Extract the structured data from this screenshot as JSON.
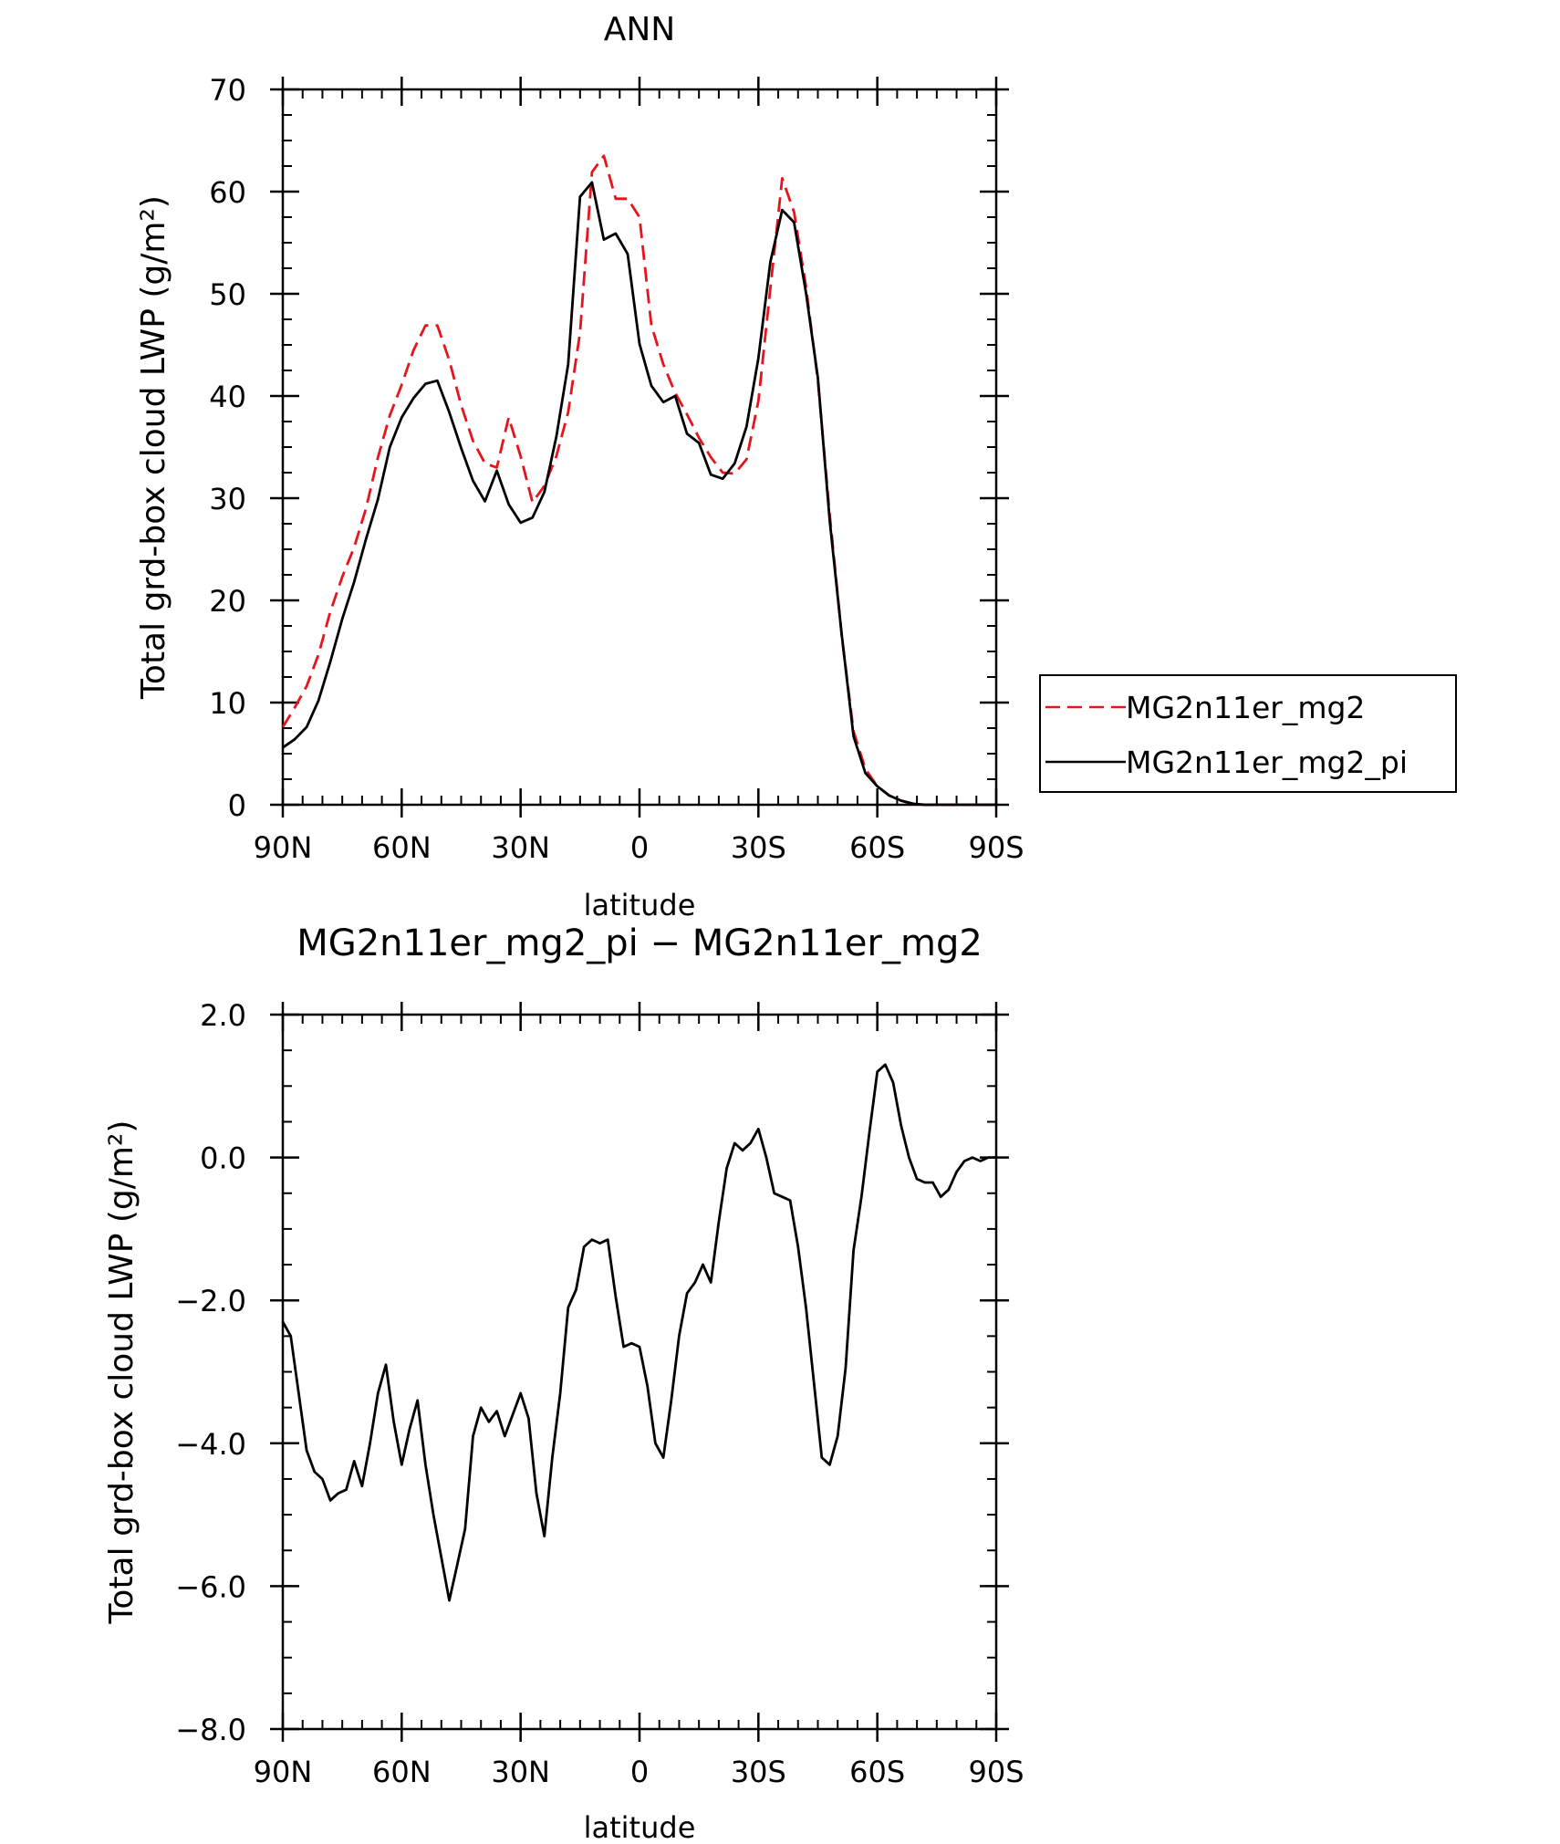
{
  "chart_data": [
    {
      "type": "line",
      "title": "ANN",
      "xlabel": "latitude",
      "ylabel": "Total grd-box cloud LWP (g/m²)",
      "xlim": [
        90,
        -90
      ],
      "ylim": [
        0,
        70
      ],
      "x_ticks": [
        90,
        60,
        30,
        0,
        -30,
        -60,
        -90
      ],
      "x_tick_labels": [
        "90N",
        "60N",
        "30N",
        "0",
        "30S",
        "60S",
        "90S"
      ],
      "y_ticks": [
        0,
        10,
        20,
        30,
        40,
        50,
        60,
        70
      ],
      "y_tick_labels": [
        "0",
        "10",
        "20",
        "30",
        "40",
        "50",
        "60",
        "70"
      ],
      "legend": "right-outside",
      "series": [
        {
          "name": "MG2n11er_mg2",
          "color": "#e8131b",
          "dash": "dashed",
          "x": [
            90,
            87,
            84,
            81,
            78,
            75,
            72,
            69,
            66,
            63,
            60,
            57,
            54,
            51,
            48,
            45,
            42,
            39,
            36,
            33,
            30,
            27,
            24,
            21,
            18,
            15,
            12,
            9,
            6,
            3,
            0,
            -3,
            -6,
            -9,
            -12,
            -15,
            -18,
            -21,
            -24,
            -27,
            -30,
            -33,
            -36,
            -39,
            -42,
            -45,
            -48,
            -51,
            -54,
            -57,
            -60,
            -63,
            -66,
            -69,
            -72,
            -75,
            -78,
            -81,
            -84,
            -87,
            -90
          ],
          "y": [
            7.6,
            9.5,
            11.6,
            14.7,
            18.9,
            22.3,
            25.2,
            29.0,
            34.0,
            38.1,
            41.1,
            44.5,
            46.9,
            46.9,
            43.5,
            39.1,
            35.6,
            33.4,
            33.0,
            37.9,
            34.1,
            29.6,
            31.2,
            34.1,
            38.4,
            46.2,
            61.9,
            63.5,
            59.3,
            59.3,
            57.5,
            46.9,
            43.1,
            40.3,
            38.2,
            35.9,
            34.0,
            32.5,
            32.4,
            33.8,
            39.5,
            50.5,
            61.3,
            58.0,
            50.7,
            41.5,
            28.4,
            16.6,
            7.2,
            3.5,
            1.8,
            0.9,
            0.4,
            0.1,
            0.0,
            0.0,
            0.0,
            0.0,
            0.0,
            0.0,
            0.0
          ]
        },
        {
          "name": "MG2n11er_mg2_pi",
          "color": "#000000",
          "dash": "solid",
          "x": [
            90,
            87,
            84,
            81,
            78,
            75,
            72,
            69,
            66,
            63,
            60,
            57,
            54,
            51,
            48,
            45,
            42,
            39,
            36,
            33,
            30,
            27,
            24,
            21,
            18,
            15,
            12,
            9,
            6,
            3,
            0,
            -3,
            -6,
            -9,
            -12,
            -15,
            -18,
            -21,
            -24,
            -27,
            -30,
            -33,
            -36,
            -39,
            -42,
            -45,
            -48,
            -51,
            -54,
            -57,
            -60,
            -63,
            -66,
            -69,
            -72,
            -75,
            -78,
            -81,
            -84,
            -87,
            -90
          ],
          "y": [
            5.6,
            6.4,
            7.6,
            10.2,
            14.0,
            18.2,
            21.8,
            26.0,
            29.9,
            35.0,
            37.9,
            39.8,
            41.2,
            41.5,
            38.4,
            34.9,
            31.7,
            29.7,
            32.7,
            29.4,
            27.6,
            28.1,
            30.6,
            36.0,
            43.1,
            59.5,
            60.9,
            55.3,
            55.9,
            53.9,
            45.1,
            41.0,
            39.4,
            40.0,
            36.3,
            35.4,
            32.3,
            31.9,
            33.4,
            37.0,
            43.7,
            53.1,
            58.2,
            57.0,
            50.1,
            41.8,
            27.8,
            16.7,
            6.7,
            3.1,
            1.8,
            0.9,
            0.4,
            0.1,
            0.0,
            0.0,
            0.0,
            0.0,
            0.0,
            0.0,
            0.0
          ]
        }
      ]
    },
    {
      "type": "line",
      "title": "MG2n11er_mg2_pi − MG2n11er_mg2",
      "xlabel": "latitude",
      "ylabel": "Total grd-box cloud LWP (g/m²)",
      "xlim": [
        90,
        -90
      ],
      "ylim": [
        -8.0,
        2.0
      ],
      "x_ticks": [
        90,
        60,
        30,
        0,
        -30,
        -60,
        -90
      ],
      "x_tick_labels": [
        "90N",
        "60N",
        "30N",
        "0",
        "30S",
        "60S",
        "90S"
      ],
      "y_ticks": [
        -8.0,
        -6.0,
        -4.0,
        -2.0,
        0.0,
        2.0
      ],
      "y_tick_labels": [
        "−8.0",
        "−6.0",
        "−4.0",
        "−2.0",
        "0.0",
        "2.0"
      ],
      "series": [
        {
          "color": "#000000",
          "dash": "solid",
          "x": [
            90,
            88,
            86,
            84,
            82,
            80,
            78,
            76,
            74,
            72,
            70,
            68,
            66,
            64,
            62,
            60,
            58,
            56,
            54,
            52,
            50,
            48,
            46,
            44,
            42,
            40,
            38,
            36,
            34,
            32,
            30,
            28,
            26,
            24,
            22,
            20,
            18,
            16,
            14,
            12,
            10,
            8,
            6,
            4,
            2,
            0,
            -2,
            -4,
            -6,
            -8,
            -10,
            -12,
            -14,
            -16,
            -18,
            -20,
            -22,
            -24,
            -26,
            -28,
            -30,
            -32,
            -34,
            -36,
            -38,
            -40,
            -42,
            -44,
            -46,
            -48,
            -50,
            -52,
            -54,
            -56,
            -58,
            -60,
            -62,
            -64,
            -66,
            -68,
            -70,
            -72,
            -74,
            -76,
            -78,
            -80,
            -82,
            -84,
            -86,
            -88,
            -90
          ],
          "y": [
            -2.3,
            -2.5,
            -3.3,
            -4.1,
            -4.4,
            -4.5,
            -4.8,
            -4.7,
            -4.65,
            -4.25,
            -4.6,
            -4.0,
            -3.3,
            -2.9,
            -3.7,
            -4.3,
            -3.8,
            -3.4,
            -4.3,
            -5.0,
            -5.6,
            -6.2,
            -5.7,
            -5.2,
            -3.9,
            -3.5,
            -3.7,
            -3.55,
            -3.9,
            -3.6,
            -3.3,
            -3.65,
            -4.7,
            -5.3,
            -4.2,
            -3.3,
            -2.1,
            -1.85,
            -1.25,
            -1.15,
            -1.2,
            -1.15,
            -1.95,
            -2.65,
            -2.6,
            -2.65,
            -3.2,
            -4.0,
            -4.2,
            -3.4,
            -2.5,
            -1.9,
            -1.75,
            -1.5,
            -1.75,
            -0.9,
            -0.15,
            0.2,
            0.1,
            0.2,
            0.4,
            0.0,
            -0.5,
            -0.55,
            -0.6,
            -1.25,
            -2.1,
            -3.15,
            -4.2,
            -4.3,
            -3.9,
            -2.95,
            -1.3,
            -0.55,
            0.35,
            1.2,
            1.3,
            1.05,
            0.45,
            0.0,
            -0.3,
            -0.35,
            -0.35,
            -0.55,
            -0.45,
            -0.2,
            -0.05,
            0.0,
            -0.05,
            0.0,
            0.0
          ]
        }
      ]
    }
  ]
}
